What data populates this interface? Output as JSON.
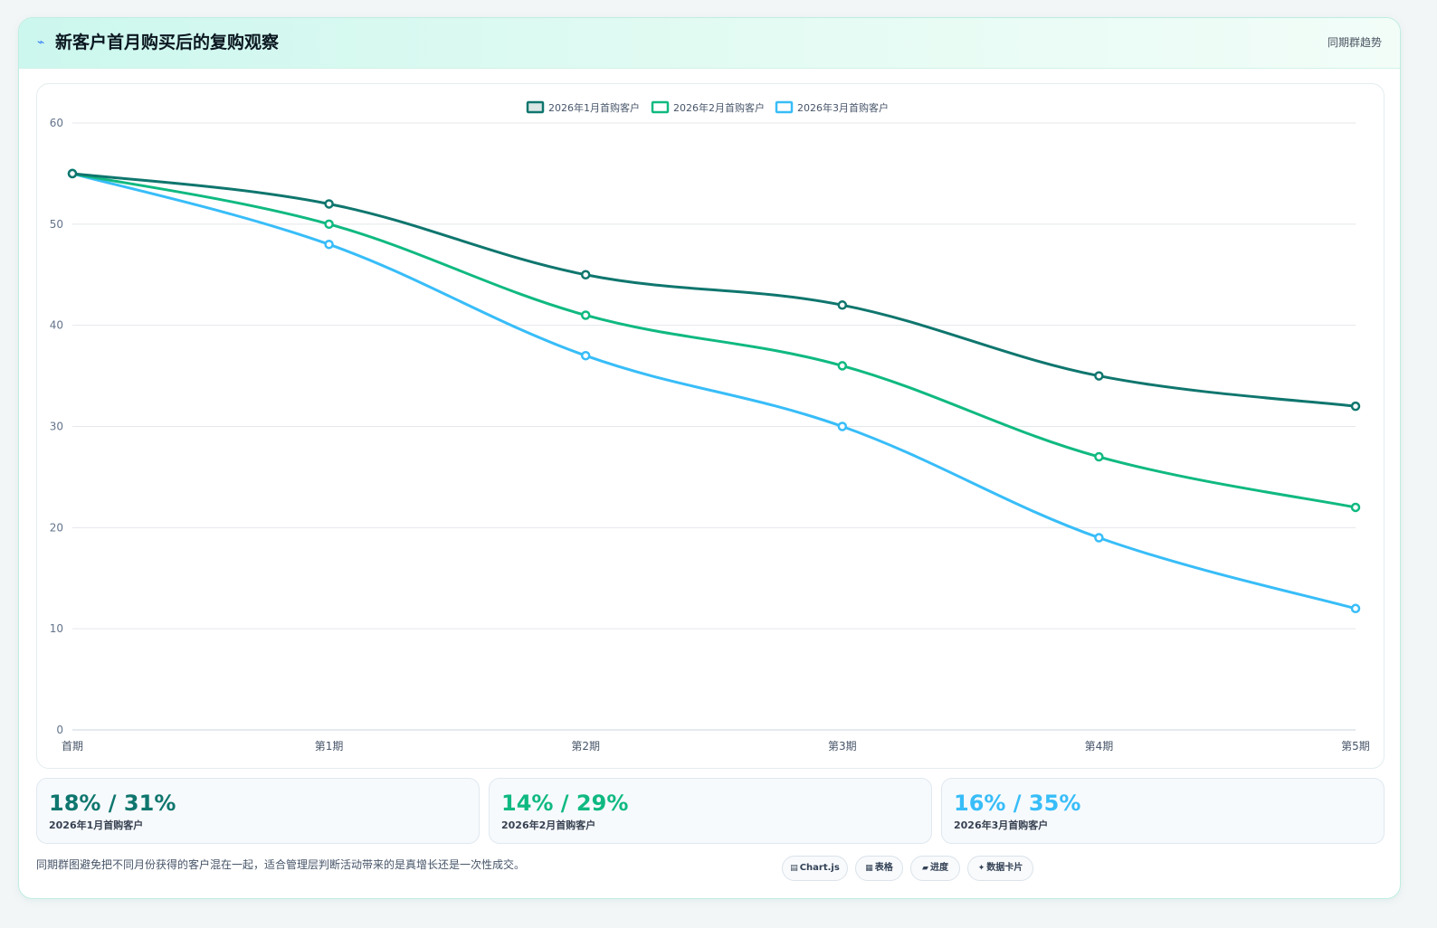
{
  "header": {
    "icon": "bolt-icon",
    "title": "新客户首月购买后的复购观察",
    "tag": "同期群趋势"
  },
  "colors": {
    "series1": "#0f766e",
    "series2": "#10b981",
    "series3": "#38bdf8"
  },
  "chart_data": {
    "type": "line",
    "categories": [
      "首期",
      "第1期",
      "第2期",
      "第3期",
      "第4期",
      "第5期"
    ],
    "series": [
      {
        "name": "2026年1月首购客户",
        "values": [
          55,
          52,
          45,
          42,
          35,
          32
        ]
      },
      {
        "name": "2026年2月首购客户",
        "values": [
          55,
          50,
          41,
          36,
          27,
          22
        ]
      },
      {
        "name": "2026年3月首购客户",
        "values": [
          55,
          48,
          37,
          30,
          19,
          12
        ]
      }
    ],
    "ylim": [
      0,
      60
    ],
    "yticks": [
      0,
      10,
      20,
      30,
      40,
      50,
      60
    ],
    "grid": true,
    "legend": "top-center"
  },
  "stats": [
    {
      "value": "18% / 31%",
      "label": "2026年1月首购客户"
    },
    {
      "value": "14% / 29%",
      "label": "2026年2月首购客户"
    },
    {
      "value": "16% / 35%",
      "label": "2026年3月首购客户"
    }
  ],
  "note": "同期群图避免把不同月份获得的客户混在一起，适合管理层判断活动带来的是真增长还是一次性成交。",
  "chips": [
    {
      "icon": "chart-icon",
      "glyph": "▤",
      "label": "Chart.js"
    },
    {
      "icon": "table-icon",
      "glyph": "▦",
      "label": "表格"
    },
    {
      "icon": "progress-icon",
      "glyph": "▰",
      "label": "进度"
    },
    {
      "icon": "sparkle-icon",
      "glyph": "✦",
      "label": "数据卡片"
    }
  ]
}
